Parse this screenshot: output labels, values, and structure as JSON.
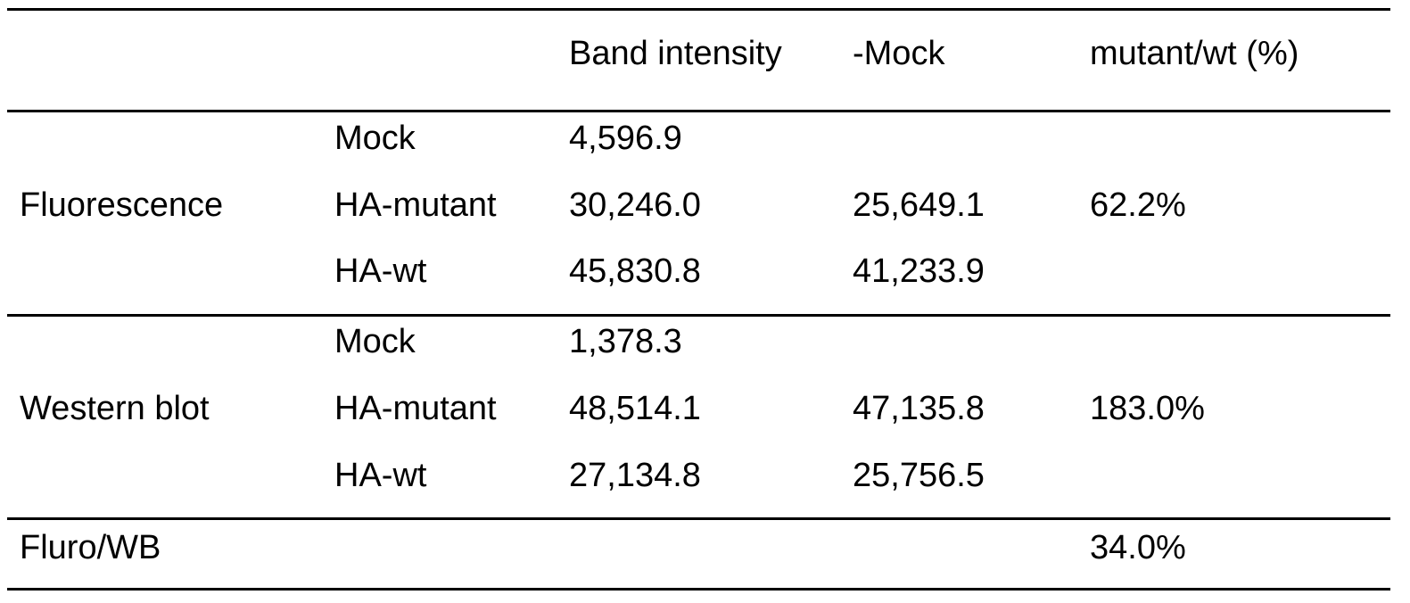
{
  "table": {
    "headers": [
      "",
      "",
      "Band intensity",
      "-Mock",
      "mutant/wt (%)"
    ],
    "groups": [
      {
        "name": "Fluorescence",
        "ratio": "62.2%",
        "rows": [
          {
            "sample": "Mock",
            "band_intensity": "4,596.9",
            "minus_mock": ""
          },
          {
            "sample": "HA-mutant",
            "band_intensity": "30,246.0",
            "minus_mock": "25,649.1"
          },
          {
            "sample": "HA-wt",
            "band_intensity": "45,830.8",
            "minus_mock": "41,233.9"
          }
        ]
      },
      {
        "name": "Western blot",
        "ratio": "183.0%",
        "rows": [
          {
            "sample": "Mock",
            "band_intensity": "1,378.3",
            "minus_mock": ""
          },
          {
            "sample": "HA-mutant",
            "band_intensity": "48,514.1",
            "minus_mock": "47,135.8"
          },
          {
            "sample": "HA-wt",
            "band_intensity": "27,134.8",
            "minus_mock": "25,756.5"
          }
        ]
      }
    ],
    "footer": {
      "label": "Fluro/WB",
      "ratio": "34.0%"
    }
  }
}
